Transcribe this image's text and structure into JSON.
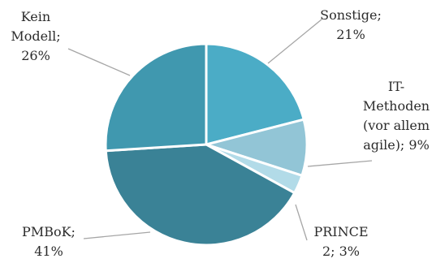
{
  "chart_data": {
    "type": "pie",
    "title": "",
    "slices": [
      {
        "name": "Sonstige",
        "value": 21,
        "color": "#4BACC6",
        "label_lines": [
          "Sonstige;",
          "21%"
        ]
      },
      {
        "name": "IT-Methoden (vor allem agile)",
        "value": 9,
        "color": "#92C5D6",
        "label_lines": [
          "IT-",
          "Methoden",
          "(vor allem",
          "agile); 9%"
        ]
      },
      {
        "name": "PRINCE 2",
        "value": 3,
        "color": "#B2DBE8",
        "label_lines": [
          "PRINCE",
          "2; 3%"
        ]
      },
      {
        "name": "PMBoK",
        "value": 41,
        "color": "#3A8296",
        "label_lines": [
          "PMBoK;",
          "41%"
        ]
      },
      {
        "name": "Kein Modell",
        "value": 26,
        "color": "#4098AF",
        "label_lines": [
          "Kein",
          "Modell;",
          "26%"
        ]
      }
    ],
    "start_angle_deg": 0,
    "direction": "clockwise",
    "legend": "none",
    "data_labels": "outside-with-leader-lines"
  }
}
